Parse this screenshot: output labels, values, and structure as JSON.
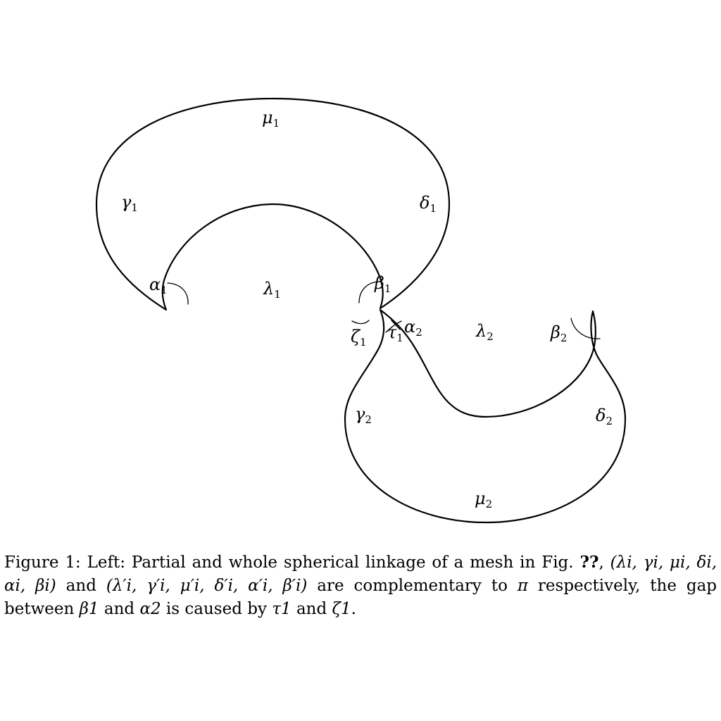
{
  "figure": {
    "labels": {
      "mu1": {
        "base": "μ",
        "sub": "1"
      },
      "gamma1": {
        "base": "γ",
        "sub": "1"
      },
      "delta1": {
        "base": "δ",
        "sub": "1"
      },
      "alpha1": {
        "base": "α",
        "sub": "1"
      },
      "lambda1": {
        "base": "λ",
        "sub": "1"
      },
      "beta1": {
        "base": "β",
        "sub": "1"
      },
      "zeta1": {
        "base": "ζ",
        "sub": "1"
      },
      "tau1": {
        "base": "τ",
        "sub": "1"
      },
      "alpha2": {
        "base": "α",
        "sub": "2"
      },
      "lambda2": {
        "base": "λ",
        "sub": "2"
      },
      "beta2": {
        "base": "β",
        "sub": "2"
      },
      "gamma2": {
        "base": "γ",
        "sub": "2"
      },
      "delta2": {
        "base": "δ",
        "sub": "2"
      },
      "mu2": {
        "base": "μ",
        "sub": "2"
      }
    }
  },
  "caption": {
    "prefix": "Figure 1:",
    "text1": "Left: Partial and whole spherical linkage of a mesh in Fig.",
    "ref": "??",
    "tuple1": "(λ",
    "tuple1_full": "(λi, γi, μi, δi, αi, βi)",
    "and": "and",
    "tuple2_full": "(λ′i, γ′i, μ′i, δ′i, α′i, β′i)",
    "text2": "are complementary to",
    "pi": "π",
    "text3": "respectively, the gap between",
    "b1": "β1",
    "and2": "and",
    "a2": "α2",
    "text4": "is caused by",
    "t1": "τ1",
    "and3": "and",
    "z1": "ζ1"
  }
}
